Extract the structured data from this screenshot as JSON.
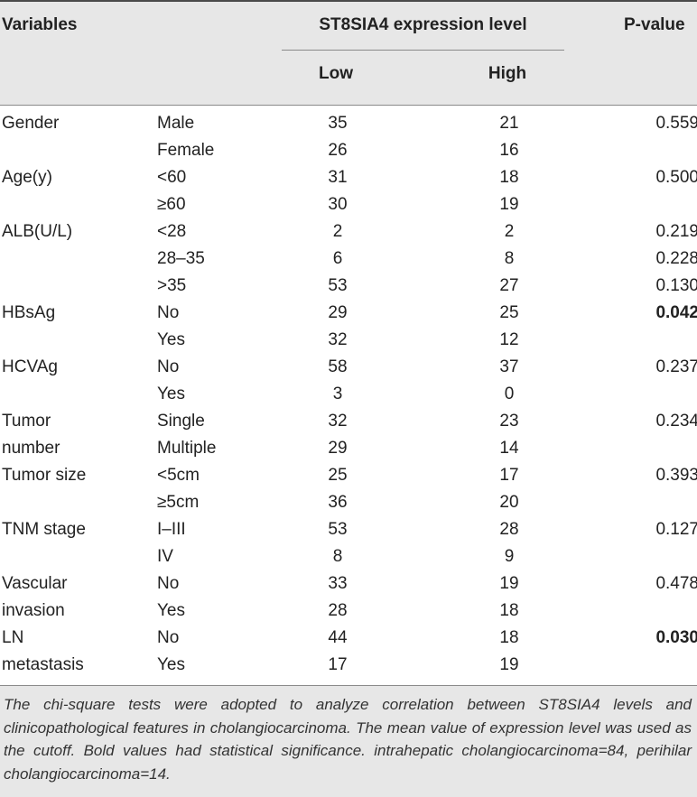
{
  "table": {
    "headers": {
      "variables": "Variables",
      "group": "ST8SIA4 expression level",
      "low": "Low",
      "high": "High",
      "pvalue": "P-value"
    },
    "rows": [
      {
        "var": "Gender",
        "sub": "Male",
        "low": "35",
        "high": "21",
        "p": "0.559",
        "bold": false
      },
      {
        "var": "",
        "sub": "Female",
        "low": "26",
        "high": "16",
        "p": "",
        "bold": false
      },
      {
        "var": "Age(y)",
        "sub": "<60",
        "low": "31",
        "high": "18",
        "p": "0.500",
        "bold": false
      },
      {
        "var": "",
        "sub": "≥60",
        "low": "30",
        "high": "19",
        "p": "",
        "bold": false
      },
      {
        "var": "ALB(U/L)",
        "sub": "<28",
        "low": "2",
        "high": "2",
        "p": "0.219",
        "bold": false
      },
      {
        "var": "",
        "sub": "28–35",
        "low": "6",
        "high": "8",
        "p": "0.228",
        "bold": false
      },
      {
        "var": "",
        "sub": ">35",
        "low": "53",
        "high": "27",
        "p": "0.130",
        "bold": false
      },
      {
        "var": "HBsAg",
        "sub": "No",
        "low": "29",
        "high": "25",
        "p": "0.042",
        "bold": true
      },
      {
        "var": "",
        "sub": "Yes",
        "low": "32",
        "high": "12",
        "p": "",
        "bold": false
      },
      {
        "var": "HCVAg",
        "sub": "No",
        "low": "58",
        "high": "37",
        "p": "0.237",
        "bold": false
      },
      {
        "var": "",
        "sub": "Yes",
        "low": "3",
        "high": "0",
        "p": "",
        "bold": false
      },
      {
        "var": "Tumor",
        "sub": "Single",
        "low": "32",
        "high": "23",
        "p": "0.234",
        "bold": false
      },
      {
        "var": "number",
        "sub": "Multiple",
        "low": "29",
        "high": "14",
        "p": "",
        "bold": false
      },
      {
        "var": "Tumor size",
        "sub": "<5cm",
        "low": "25",
        "high": "17",
        "p": "0.393",
        "bold": false
      },
      {
        "var": "",
        "sub": "≥5cm",
        "low": "36",
        "high": "20",
        "p": "",
        "bold": false
      },
      {
        "var": "TNM stage",
        "sub": "I–III",
        "low": "53",
        "high": "28",
        "p": "0.127",
        "bold": false
      },
      {
        "var": "",
        "sub": "IV",
        "low": "8",
        "high": "9",
        "p": "",
        "bold": false
      },
      {
        "var": "Vascular",
        "sub": "No",
        "low": "33",
        "high": "19",
        "p": "0.478",
        "bold": false
      },
      {
        "var": "invasion",
        "sub": "Yes",
        "low": "28",
        "high": "18",
        "p": "",
        "bold": false
      },
      {
        "var": "LN",
        "sub": "No",
        "low": "44",
        "high": "18",
        "p": "0.030",
        "bold": true
      },
      {
        "var": "metastasis",
        "sub": "Yes",
        "low": "17",
        "high": "19",
        "p": "",
        "bold": false
      }
    ]
  },
  "footnote": "The chi-square tests were adopted to analyze correlation between ST8SIA4 levels and clinicopathological features in cholangiocarcinoma. The mean value of expression level was used as the cutoff. Bold values had statistical significance. intrahepatic cholangiocarcinoma=84, perihilar cholangiocarcinoma=14."
}
